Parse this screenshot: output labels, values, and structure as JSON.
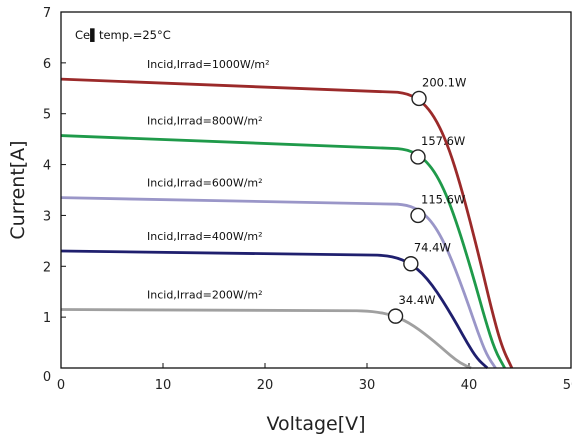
{
  "chart_data": {
    "type": "line",
    "title": "",
    "xlabel": "Voltage[V]",
    "ylabel": "Current[A]",
    "xlim": [
      0,
      50
    ],
    "ylim": [
      0,
      7
    ],
    "x_ticks": [
      "0",
      "10",
      "20",
      "30",
      "40",
      "50"
    ],
    "y_ticks": [
      "0",
      "1",
      "2",
      "3",
      "4",
      "5",
      "6",
      "7"
    ],
    "grid": false,
    "annotation": "Ce▌temp.=25°C",
    "series": [
      {
        "name": "Incid,Irrad=1000W/m²",
        "color": "#9b2a2a",
        "isc": 5.68,
        "voc": 44.2,
        "vknee": 33,
        "knee_drop": 0.13,
        "mpp": {
          "x": 35.1,
          "y": 5.3,
          "label": "200.1W"
        }
      },
      {
        "name": "Incid,Irrad=800W/m²",
        "color": "#1f9a4a",
        "isc": 4.57,
        "voc": 43.5,
        "vknee": 33,
        "knee_drop": 0.16,
        "mpp": {
          "x": 35.0,
          "y": 4.15,
          "label": "157.6W"
        }
      },
      {
        "name": "Incid,Irrad=600W/m²",
        "color": "#9a96c8",
        "isc": 3.35,
        "voc": 42.6,
        "vknee": 33,
        "knee_drop": 0.11,
        "mpp": {
          "x": 35.0,
          "y": 3.0,
          "label": "115.6W"
        }
      },
      {
        "name": "Incid,Irrad=400W/m²",
        "color": "#1f1f6e",
        "isc": 2.3,
        "voc": 41.8,
        "vknee": 31,
        "knee_drop": 0.1,
        "mpp": {
          "x": 34.3,
          "y": 2.05,
          "label": "74.4W"
        }
      },
      {
        "name": "Incid,Irrad=200W/m²",
        "color": "#a0a0a0",
        "isc": 1.15,
        "voc": 40.2,
        "vknee": 29,
        "knee_drop": 0.06,
        "mpp": {
          "x": 32.8,
          "y": 1.02,
          "label": "34.4W"
        }
      }
    ]
  }
}
